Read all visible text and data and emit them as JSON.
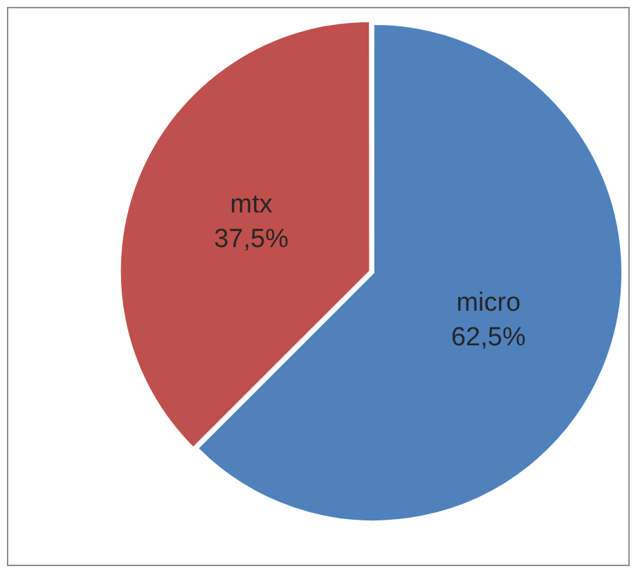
{
  "chart_data": {
    "type": "pie",
    "categories": [
      "micro",
      "mtx"
    ],
    "values": [
      62.5,
      37.5
    ],
    "colors": [
      "#4f81bd",
      "#c0504d"
    ],
    "value_labels": [
      "62,5%",
      "37,5%"
    ],
    "legend": false
  }
}
